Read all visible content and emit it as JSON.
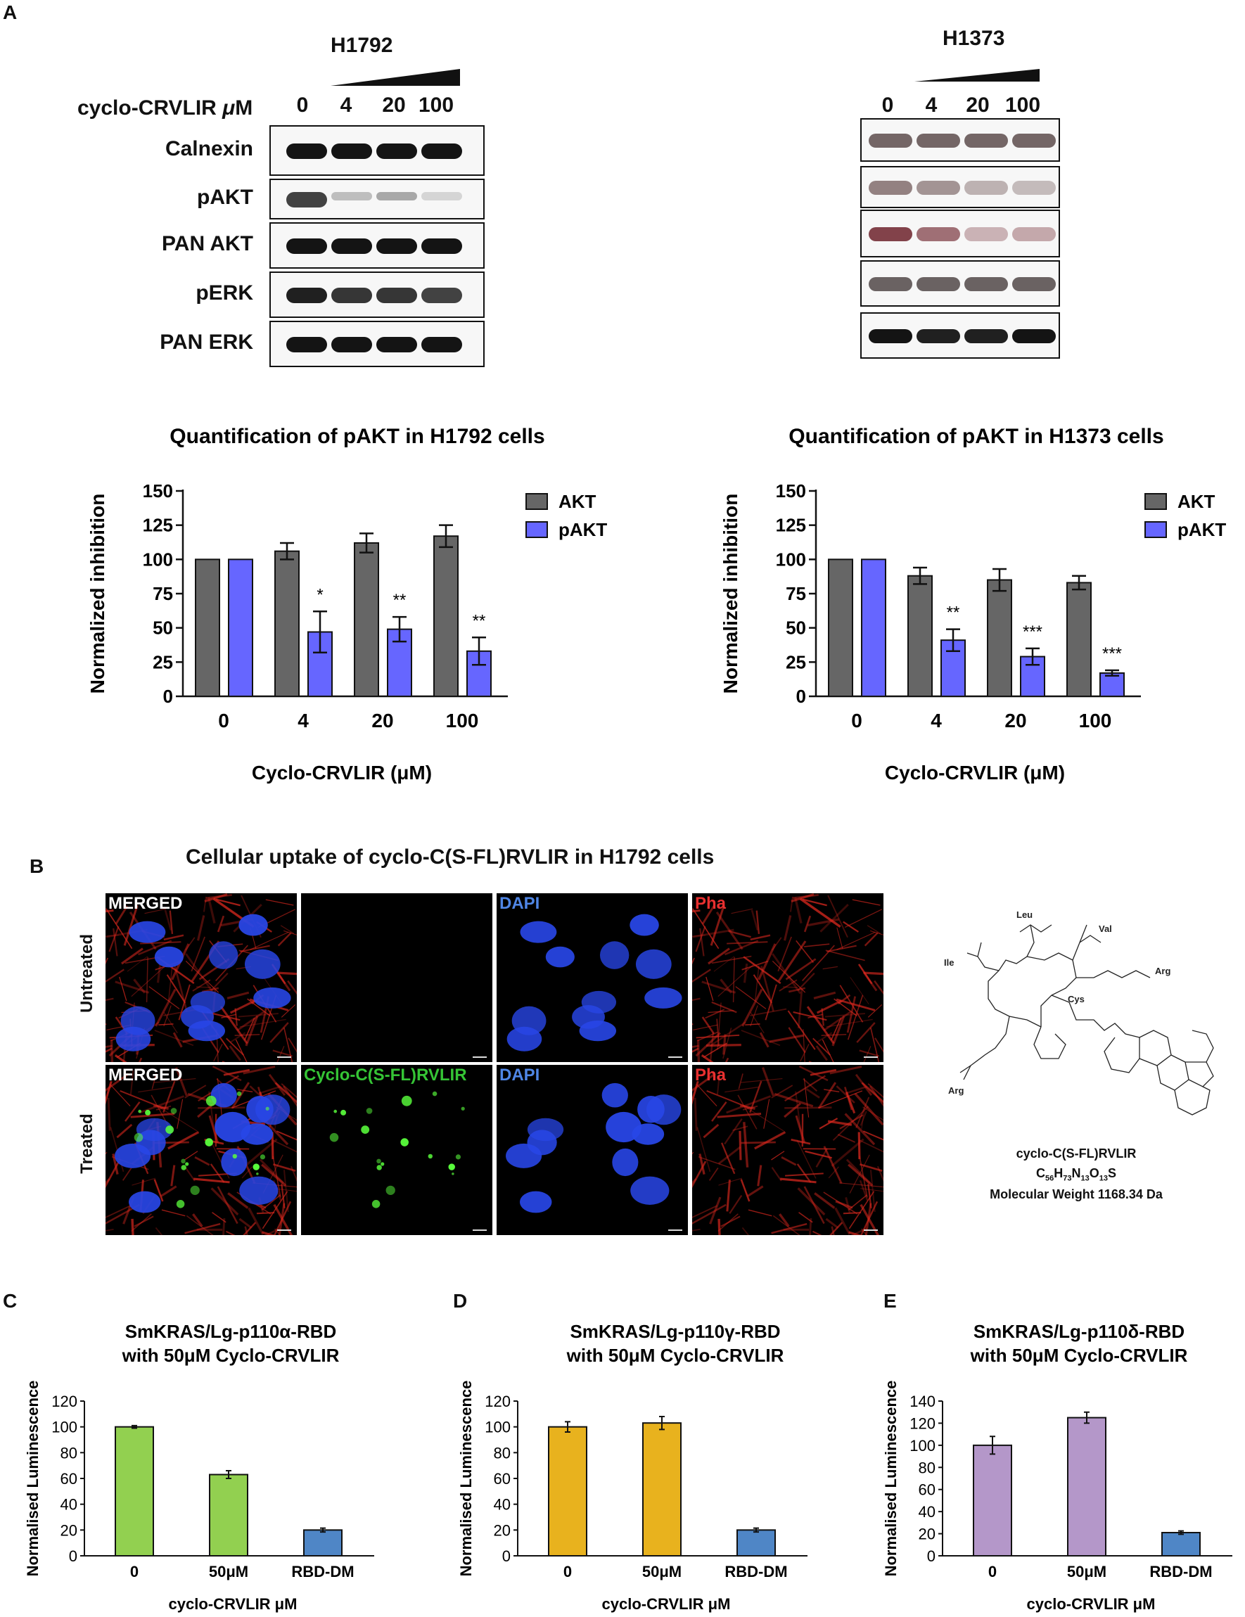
{
  "panel_a": {
    "letter": "A",
    "h1792": {
      "title": "H1792",
      "dose_label": "cyclo-CRVLIR μM",
      "doses": [
        "0",
        "4",
        "20",
        "100"
      ],
      "blots": [
        "Calnexin",
        "pAKT",
        "PAN AKT",
        "pERK",
        "PAN ERK"
      ]
    },
    "h1373": {
      "title": "H1373",
      "doses": [
        "0",
        "4",
        "20",
        "100"
      ]
    }
  },
  "chart_data": [
    {
      "type": "bar",
      "title": "Quantification of pAKT in H1792  cells",
      "xlabel": "Cyclo-CRVLIR (μM)",
      "ylabel": "Normalized inhibition",
      "categories": [
        "0",
        "4",
        "20",
        "100"
      ],
      "ylim": [
        0,
        150
      ],
      "yticks": [
        "0",
        "25",
        "50",
        "75",
        "100",
        "125",
        "150"
      ],
      "series": [
        {
          "name": "AKT",
          "color": "#666666",
          "values": [
            100,
            106,
            112,
            117
          ],
          "errors": [
            0,
            6,
            7,
            8
          ]
        },
        {
          "name": "pAKT",
          "color": "#6666ff",
          "values": [
            100,
            47,
            49,
            33
          ],
          "errors": [
            0,
            15,
            9,
            10
          ]
        }
      ],
      "annotations": [
        "",
        "*",
        "**",
        "**"
      ],
      "legend": "right"
    },
    {
      "type": "bar",
      "title": "Quantification of pAKT in H1373 cells",
      "xlabel": "Cyclo-CRVLIR (μM)",
      "ylabel": "Normalized inhibition",
      "categories": [
        "0",
        "4",
        "20",
        "100"
      ],
      "ylim": [
        0,
        150
      ],
      "yticks": [
        "0",
        "25",
        "50",
        "75",
        "100",
        "125",
        "150"
      ],
      "series": [
        {
          "name": "AKT",
          "color": "#666666",
          "values": [
            100,
            88,
            85,
            83
          ],
          "errors": [
            0,
            6,
            8,
            5
          ]
        },
        {
          "name": "pAKT",
          "color": "#6666ff",
          "values": [
            100,
            41,
            29,
            17
          ],
          "errors": [
            0,
            8,
            6,
            2
          ]
        }
      ],
      "annotations": [
        "",
        "**",
        "***",
        "***"
      ],
      "legend": "right"
    },
    {
      "type": "bar",
      "title": "SmKRAS/Lg-p110α-RBD",
      "subtitle": "with 50μM Cyclo-CRVLIR",
      "xlabel": "cyclo-CRVLIR μM",
      "ylabel": "Normalised Luminescence",
      "categories": [
        "0",
        "50μM",
        "RBD-DM"
      ],
      "ylim": [
        0,
        120
      ],
      "yticks": [
        "0",
        "20",
        "40",
        "60",
        "80",
        "100",
        "120"
      ],
      "values": [
        100,
        63,
        20
      ],
      "errors": [
        1,
        3,
        1.5
      ],
      "colors": [
        "#92d050",
        "#92d050",
        "#4f86c6"
      ]
    },
    {
      "type": "bar",
      "title": "SmKRAS/Lg-p110γ-RBD",
      "subtitle": "with 50μM Cyclo-CRVLIR",
      "xlabel": "cyclo-CRVLIR μM",
      "ylabel": "Normalised Luminescence",
      "categories": [
        "0",
        "50μM",
        "RBD-DM"
      ],
      "ylim": [
        0,
        120
      ],
      "yticks": [
        "0",
        "20",
        "40",
        "60",
        "80",
        "100",
        "120"
      ],
      "values": [
        100,
        103,
        20
      ],
      "errors": [
        4,
        5,
        1.5
      ],
      "colors": [
        "#e8b21e",
        "#e8b21e",
        "#4f86c6"
      ]
    },
    {
      "type": "bar",
      "title": "SmKRAS/Lg-p110δ-RBD",
      "subtitle": "with 50μM Cyclo-CRVLIR",
      "xlabel": "cyclo-CRVLIR μM",
      "ylabel": "Normalised Luminescence",
      "categories": [
        "0",
        "50μM",
        "RBD-DM"
      ],
      "ylim": [
        0,
        140
      ],
      "yticks": [
        "0",
        "20",
        "40",
        "60",
        "80",
        "100",
        "120",
        "140"
      ],
      "values": [
        100,
        125,
        21
      ],
      "errors": [
        8,
        5,
        1.5
      ],
      "colors": [
        "#b497c9",
        "#b497c9",
        "#4f86c6"
      ]
    }
  ],
  "panel_b": {
    "letter": "B",
    "title": "Cellular uptake of cyclo-C(S-FL)RVLIR in H1792 cells",
    "rows": [
      "Untreated",
      "Treated"
    ],
    "labels_untreated": [
      "MERGED",
      "",
      "DAPI",
      "Pha"
    ],
    "labels_treated": [
      "MERGED",
      "Cyclo-C(S-FL)RVLIR",
      "DAPI",
      "Pha"
    ],
    "label_colors": [
      "#ffffff",
      "#35c435",
      "#4f86e6",
      "#e83030"
    ],
    "structure": {
      "residues": [
        "Leu",
        "Val",
        "Ile",
        "Arg",
        "Cys",
        "Arg"
      ],
      "name": "cyclo-C(S-FL)RVLIR",
      "formula_parts": [
        "C",
        "56",
        "H",
        "73",
        "N",
        "13",
        "O",
        "13",
        "S"
      ],
      "mw": "Molecular Weight 1168.34 Da"
    }
  },
  "panel_letters": {
    "c": "C",
    "d": "D",
    "e": "E"
  }
}
